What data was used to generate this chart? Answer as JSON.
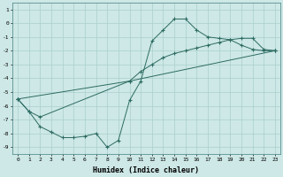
{
  "title": "",
  "xlabel": "Humidex (Indice chaleur)",
  "ylabel": "",
  "bg_color": "#cde8e6",
  "grid_color": "#aacfcd",
  "line_color": "#2d6b62",
  "figsize": [
    3.2,
    2.0
  ],
  "dpi": 100,
  "xlim": [
    -0.5,
    23.5
  ],
  "ylim": [
    -9.5,
    1.5
  ],
  "xticks": [
    0,
    1,
    2,
    3,
    4,
    5,
    6,
    7,
    8,
    9,
    10,
    11,
    12,
    13,
    14,
    15,
    16,
    17,
    18,
    19,
    20,
    21,
    22,
    23
  ],
  "yticks": [
    1,
    0,
    -1,
    -2,
    -3,
    -4,
    -5,
    -6,
    -7,
    -8,
    -9
  ],
  "line1_x": [
    0,
    1,
    2,
    3,
    4,
    5,
    6,
    7,
    8,
    9,
    10,
    11,
    12,
    13,
    14,
    15,
    16,
    17,
    18,
    19,
    20,
    21,
    22,
    23
  ],
  "line1_y": [
    -5.5,
    -6.4,
    -7.5,
    -7.9,
    -8.3,
    -8.3,
    -8.2,
    -8.0,
    -9.0,
    -8.5,
    -5.6,
    -4.2,
    -1.3,
    -0.5,
    0.3,
    0.3,
    -0.5,
    -1.0,
    -1.1,
    -1.2,
    -1.6,
    -1.9,
    -2.0,
    -2.0
  ],
  "line2_x": [
    0,
    1,
    2,
    10,
    11,
    12,
    13,
    14,
    15,
    16,
    17,
    18,
    19,
    20,
    21,
    22,
    23
  ],
  "line2_y": [
    -5.5,
    -6.4,
    -6.8,
    -4.2,
    -3.5,
    -3.0,
    -2.5,
    -2.2,
    -2.0,
    -1.8,
    -1.6,
    -1.4,
    -1.2,
    -1.1,
    -1.1,
    -1.9,
    -2.0
  ],
  "line3_x": [
    0,
    10,
    23
  ],
  "line3_y": [
    -5.5,
    -4.2,
    -2.0
  ]
}
